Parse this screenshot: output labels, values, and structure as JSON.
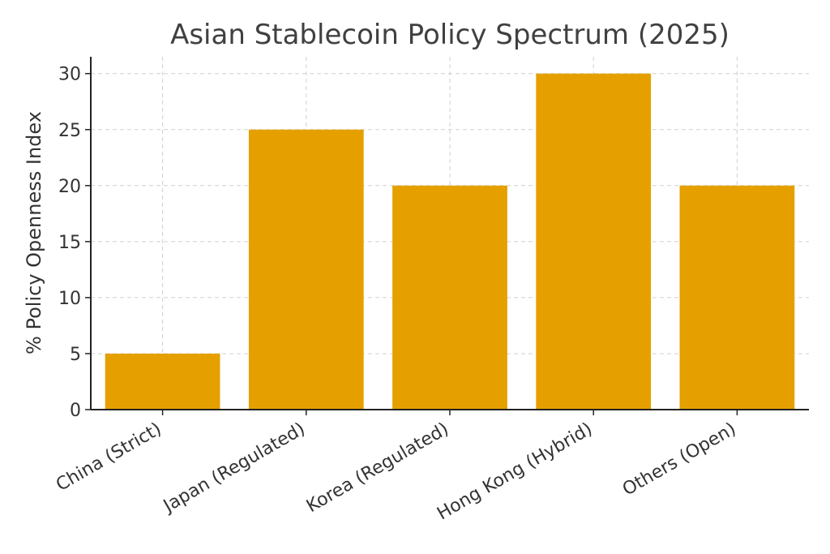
{
  "chart_data": {
    "type": "bar",
    "title": "Asian Stablecoin Policy Spectrum (2025)",
    "xlabel": "",
    "ylabel": "% Policy Openness Index",
    "categories": [
      "China (Strict)",
      "Japan (Regulated)",
      "Korea (Regulated)",
      "Hong Kong (Hybrid)",
      "Others (Open)"
    ],
    "values": [
      5,
      25,
      20,
      30,
      20
    ],
    "ylim": [
      0,
      31.5
    ],
    "yticks": [
      0,
      5,
      10,
      15,
      20,
      25,
      30
    ],
    "grid": true,
    "bar_color": "#e5a000"
  }
}
